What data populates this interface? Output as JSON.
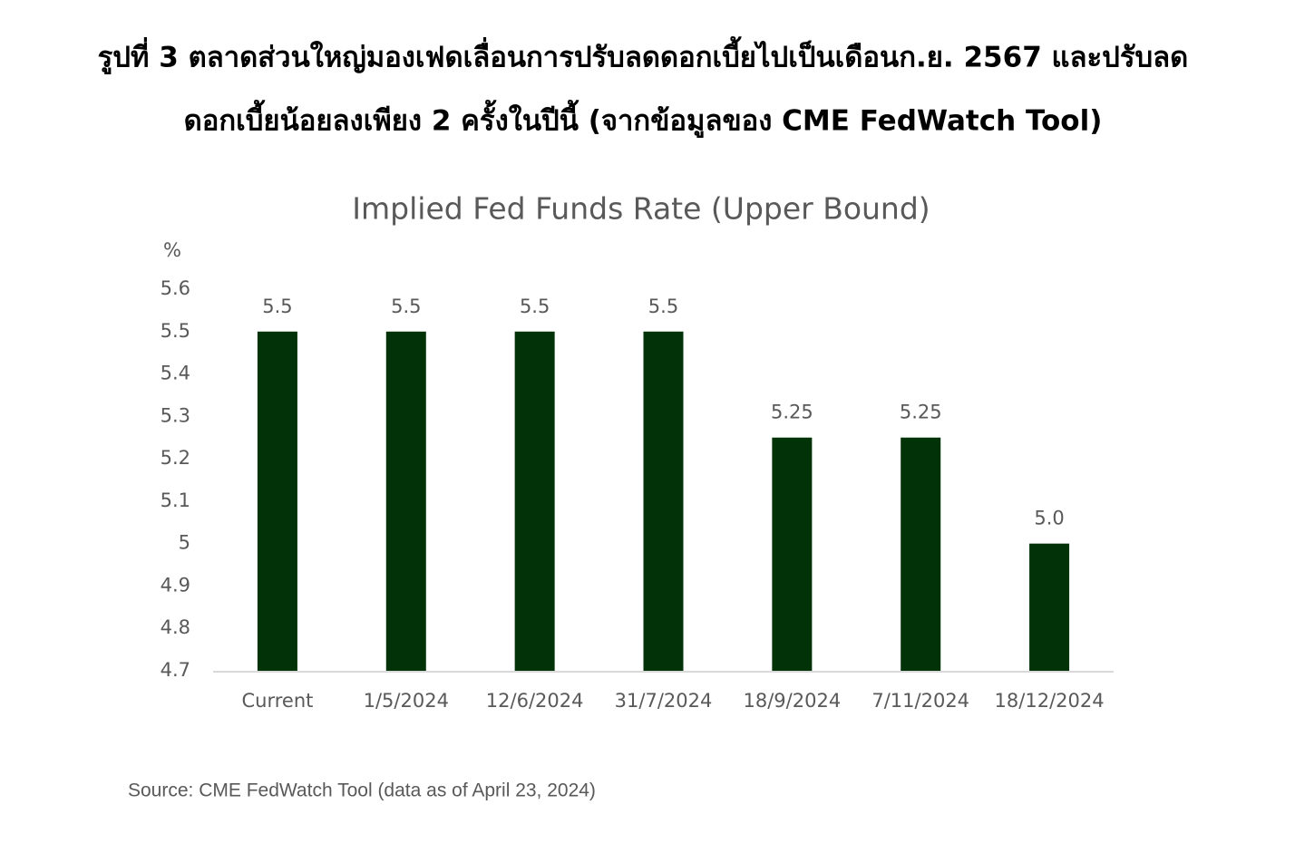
{
  "heading": [
    "รูปที่ 3 ตลาดส่วนใหญ่มองเฟดเลื่อนการปรับลดดอกเบี้ยไปเป็นเดือนก.ย. 2567 และปรับลด",
    "ดอกเบี้ยน้อยลงเพียง 2 ครั้งในปีนี้ (จากข้อมูลของ CME FedWatch Tool)"
  ],
  "chart_data": {
    "type": "bar",
    "title": "Implied Fed Funds Rate (Upper Bound)",
    "y_axis_label": "%",
    "categories": [
      "Current",
      "1/5/2024",
      "12/6/2024",
      "31/7/2024",
      "18/9/2024",
      "7/11/2024",
      "18/12/2024"
    ],
    "values": [
      5.5,
      5.5,
      5.5,
      5.5,
      5.25,
      5.25,
      5.0
    ],
    "value_labels": [
      "5.5",
      "5.5",
      "5.5",
      "5.5",
      "5.25",
      "5.25",
      "5.0"
    ],
    "color": "#013208",
    "ylim": [
      4.7,
      5.6
    ],
    "yticks": [
      4.7,
      4.8,
      4.9,
      5,
      5.1,
      5.2,
      5.3,
      5.4,
      5.5,
      5.6
    ],
    "grid": false
  },
  "source": "Source: CME FedWatch Tool (data as of April 23, 2024)"
}
